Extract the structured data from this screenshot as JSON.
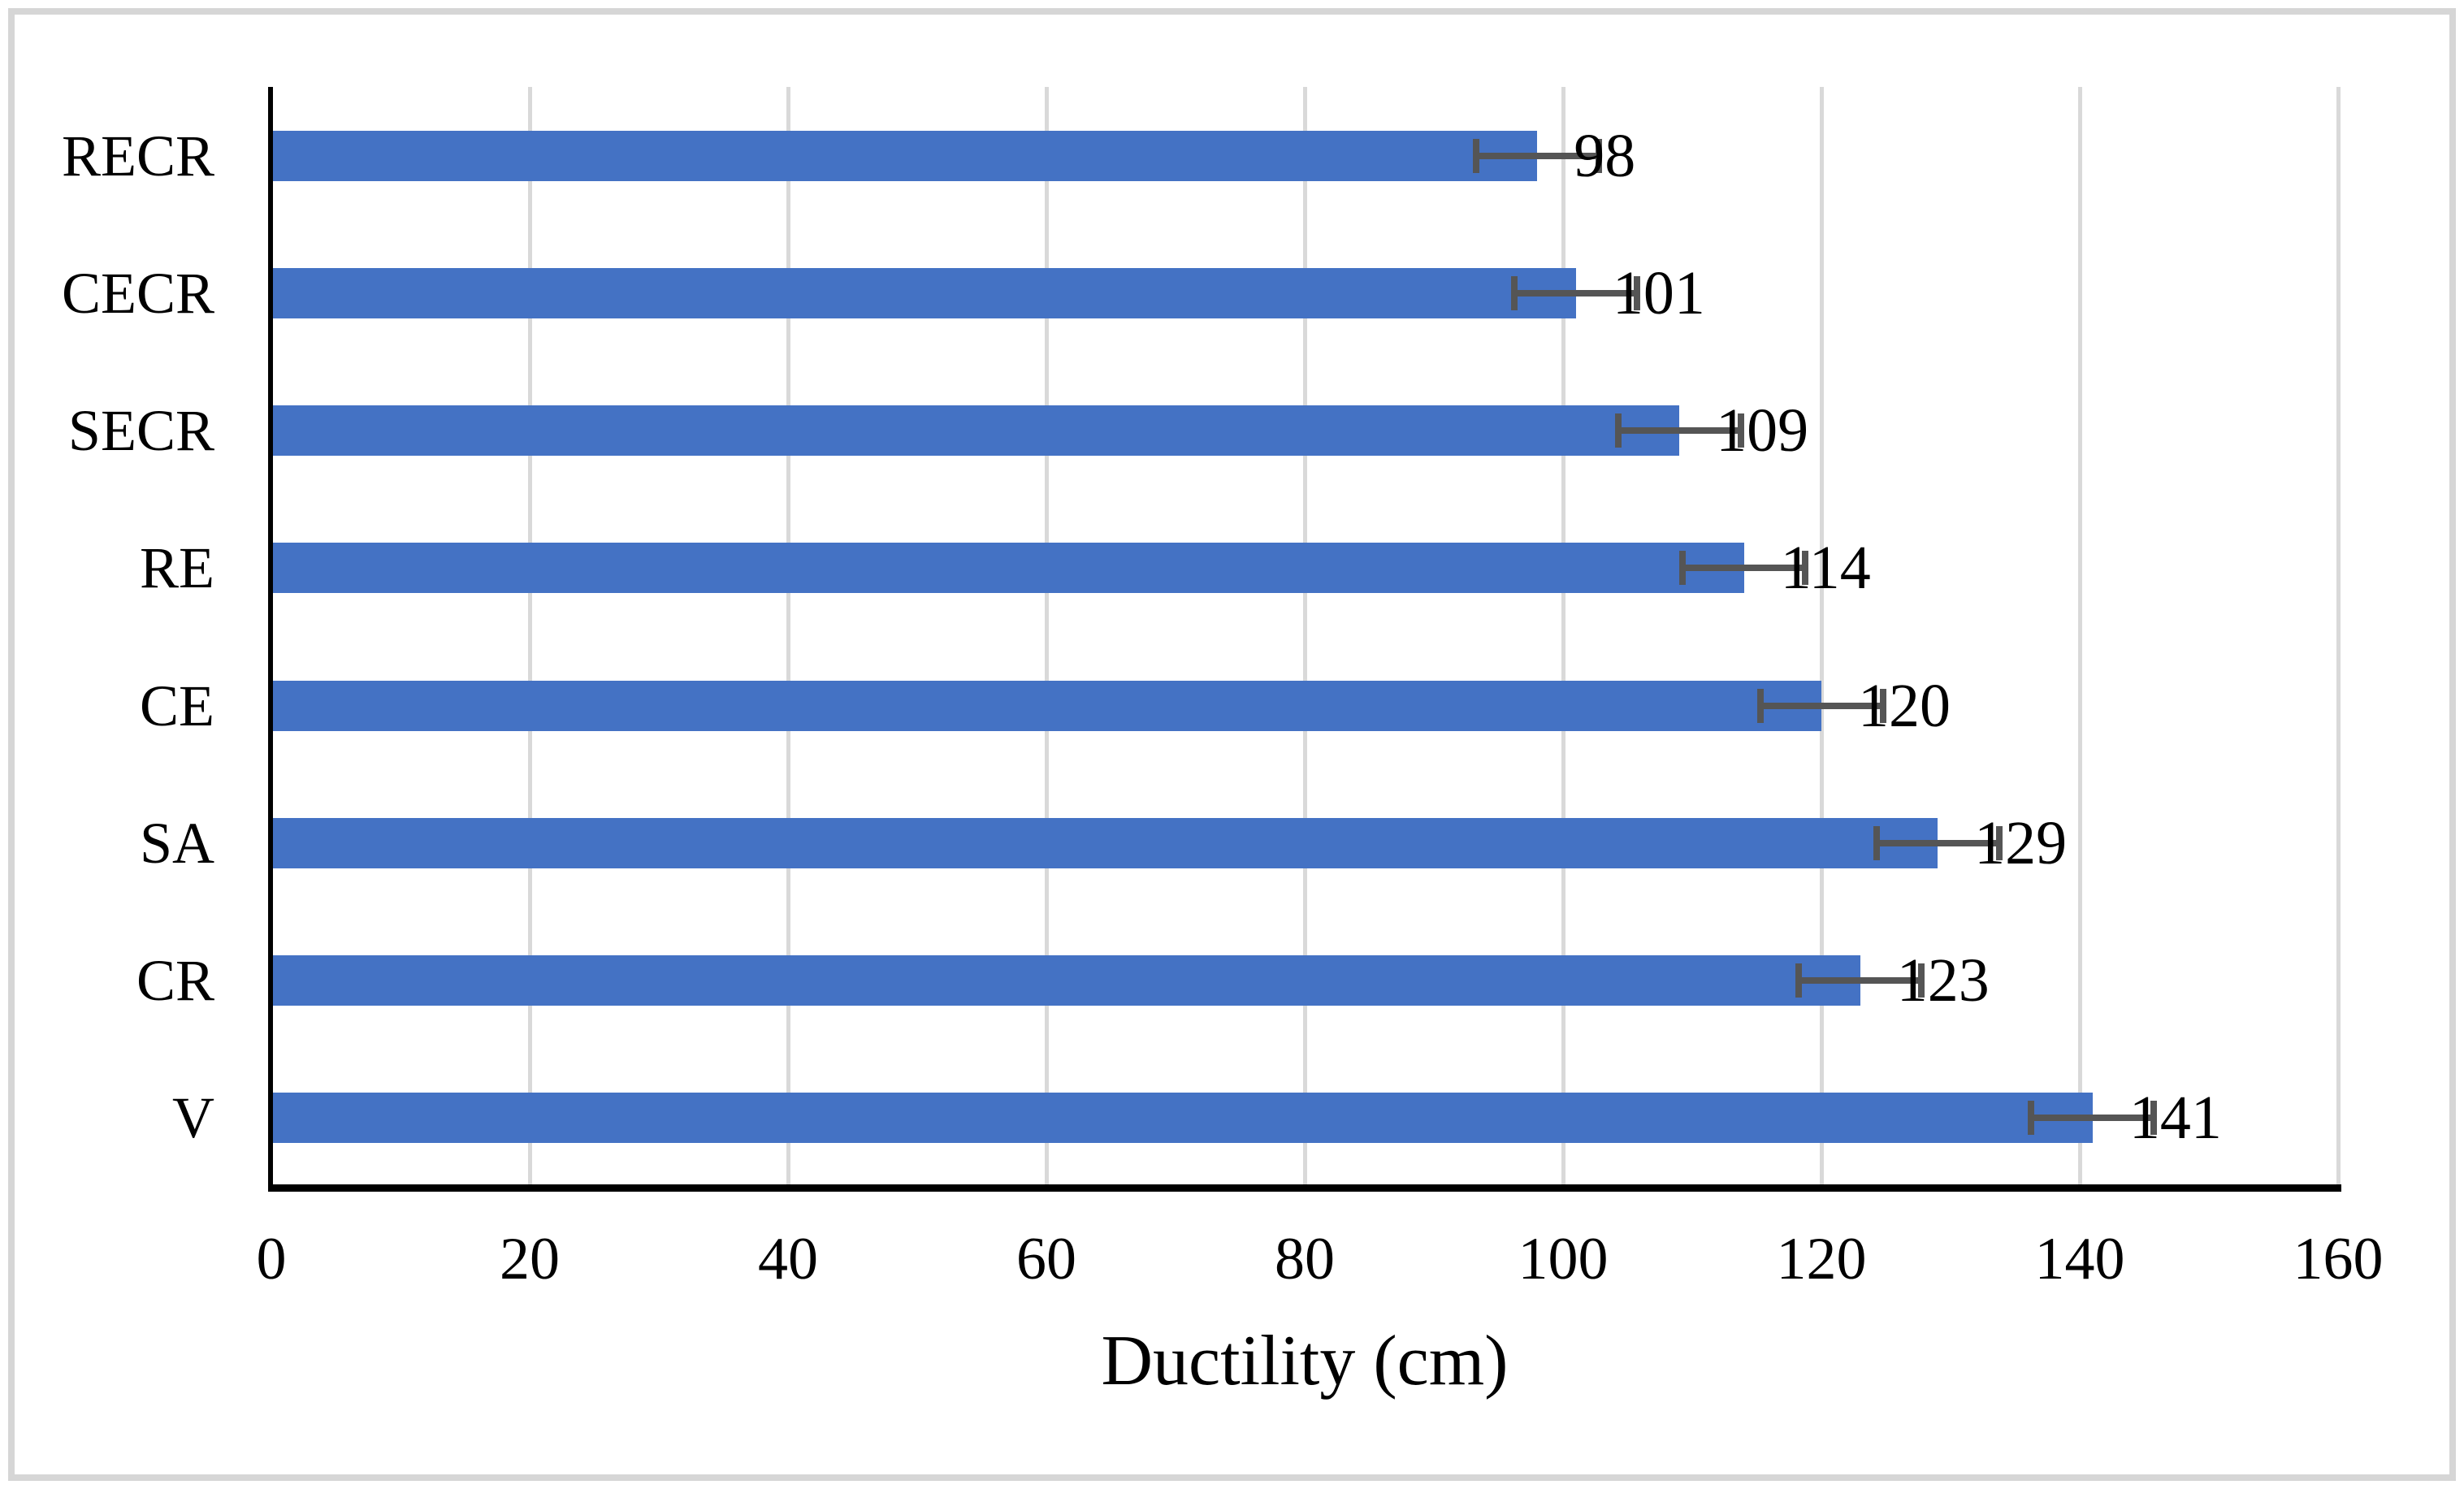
{
  "chart_data": {
    "type": "bar",
    "orientation": "horizontal",
    "title": "",
    "categories": [
      "RECR",
      "CECR",
      "SECR",
      "RE",
      "CE",
      "SA",
      "CR",
      "V"
    ],
    "values": [
      98,
      101,
      109,
      114,
      120,
      129,
      123,
      141
    ],
    "data_labels": [
      "98",
      "101",
      "109",
      "114",
      "120",
      "129",
      "123",
      "141"
    ],
    "error_bars": [
      5,
      5,
      5,
      5,
      5,
      5,
      5,
      5
    ],
    "xlabel": "Ductility (cm)",
    "ylabel": "",
    "xlim": [
      0,
      160
    ],
    "xticks": [
      0,
      20,
      40,
      60,
      80,
      100,
      120,
      140,
      160
    ],
    "grid": "vertical-only",
    "legend": "none",
    "colors": {
      "bar": "#4472c4",
      "error_bar": "#555555",
      "gridline": "#d9d9d9",
      "axis_line": "#000000",
      "label_text": "#000000",
      "figure_border": "#d6d6d6",
      "background": "#ffffff"
    }
  }
}
